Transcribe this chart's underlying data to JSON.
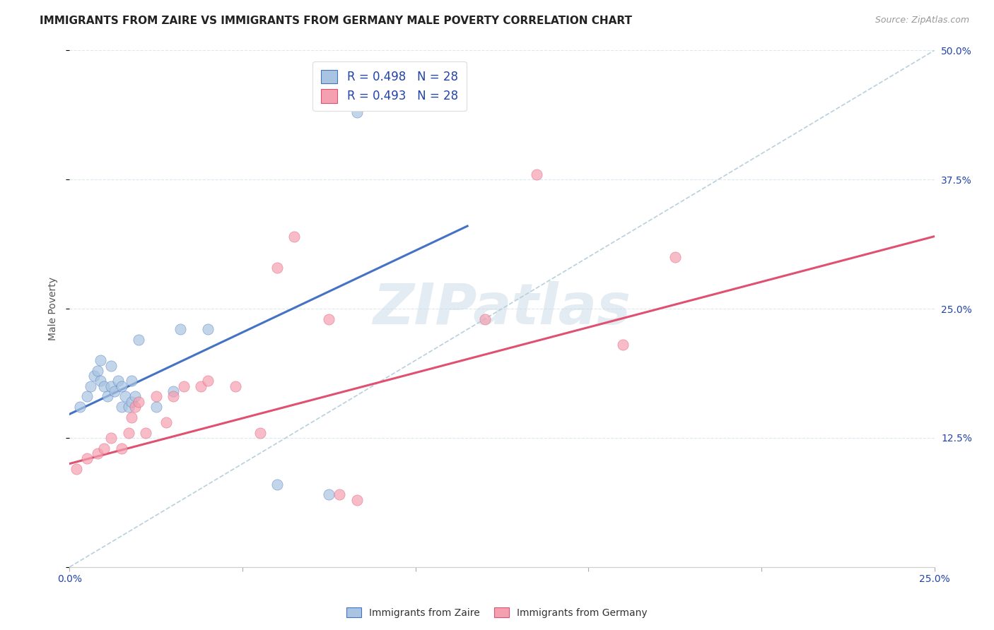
{
  "title": "IMMIGRANTS FROM ZAIRE VS IMMIGRANTS FROM GERMANY MALE POVERTY CORRELATION CHART",
  "source": "Source: ZipAtlas.com",
  "xlabel": "",
  "ylabel": "Male Poverty",
  "xlim": [
    0.0,
    0.25
  ],
  "ylim": [
    0.0,
    0.5
  ],
  "zaire_color": "#a8c4e0",
  "germany_color": "#f4a0b0",
  "zaire_line_color": "#4472c4",
  "germany_line_color": "#e05070",
  "dashed_line_color": "#b8d0dc",
  "legend_text_color": "#2244aa",
  "R_zaire": 0.498,
  "R_germany": 0.493,
  "N_zaire": 28,
  "N_germany": 28,
  "watermark": "ZIPatlas",
  "zaire_x": [
    0.003,
    0.005,
    0.006,
    0.007,
    0.008,
    0.009,
    0.009,
    0.01,
    0.011,
    0.012,
    0.012,
    0.013,
    0.014,
    0.015,
    0.015,
    0.016,
    0.017,
    0.018,
    0.018,
    0.019,
    0.02,
    0.025,
    0.03,
    0.032,
    0.04,
    0.06,
    0.075,
    0.083
  ],
  "zaire_y": [
    0.155,
    0.165,
    0.175,
    0.185,
    0.19,
    0.18,
    0.2,
    0.175,
    0.165,
    0.175,
    0.195,
    0.17,
    0.18,
    0.155,
    0.175,
    0.165,
    0.155,
    0.16,
    0.18,
    0.165,
    0.22,
    0.155,
    0.17,
    0.23,
    0.23,
    0.08,
    0.07,
    0.44
  ],
  "germany_x": [
    0.002,
    0.005,
    0.008,
    0.01,
    0.012,
    0.015,
    0.017,
    0.018,
    0.019,
    0.02,
    0.022,
    0.025,
    0.028,
    0.03,
    0.033,
    0.038,
    0.04,
    0.048,
    0.055,
    0.06,
    0.065,
    0.075,
    0.078,
    0.083,
    0.12,
    0.135,
    0.16,
    0.175
  ],
  "germany_y": [
    0.095,
    0.105,
    0.11,
    0.115,
    0.125,
    0.115,
    0.13,
    0.145,
    0.155,
    0.16,
    0.13,
    0.165,
    0.14,
    0.165,
    0.175,
    0.175,
    0.18,
    0.175,
    0.13,
    0.29,
    0.32,
    0.24,
    0.07,
    0.065,
    0.24,
    0.38,
    0.215,
    0.3
  ],
  "zaire_line_x": [
    0.0,
    0.115
  ],
  "zaire_line_y": [
    0.148,
    0.33
  ],
  "germany_line_x": [
    0.0,
    0.25
  ],
  "germany_line_y": [
    0.1,
    0.32
  ],
  "background_color": "#ffffff",
  "grid_color": "#dce8f0",
  "title_fontsize": 11,
  "axis_label_fontsize": 10,
  "tick_fontsize": 10
}
